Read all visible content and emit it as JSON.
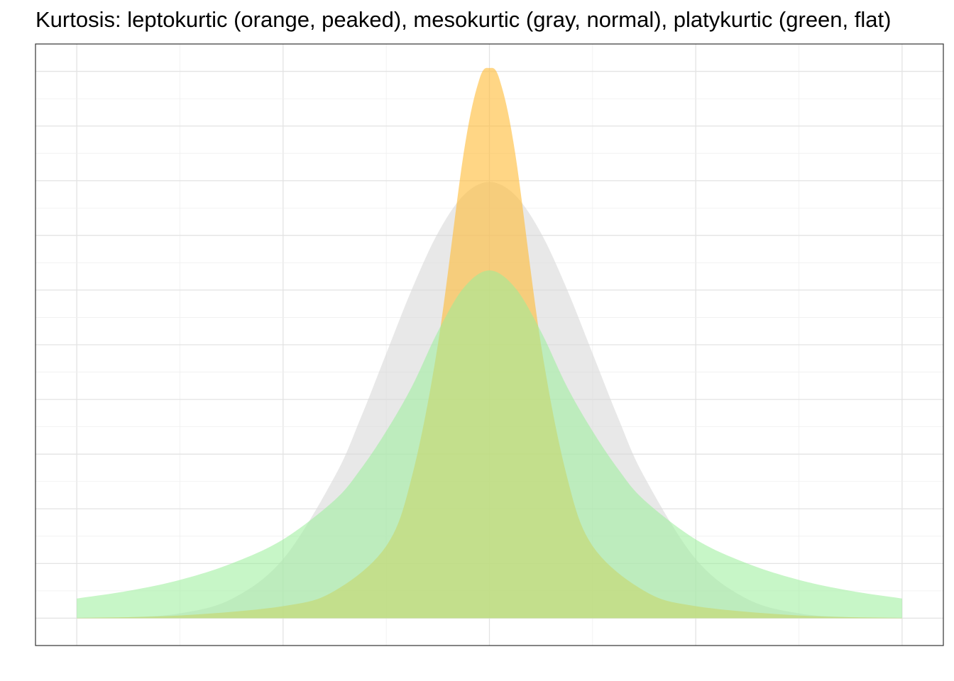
{
  "chart_data": {
    "type": "area",
    "title": "Kurtosis: leptokurtic (orange, peaked), mesokurtic (gray, normal), platykurtic (green, flat)",
    "xlabel": "",
    "ylabel": "",
    "xlim": [
      -4.4,
      4.4
    ],
    "ylim": [
      -0.025,
      0.525
    ],
    "grid": true,
    "legend": "none",
    "series": [
      {
        "key": "mesokurtic",
        "color": "#d9d9d9",
        "opacity": 0.6,
        "x": [
          -4,
          -3.5,
          -3,
          -2.5,
          -2,
          -1.5,
          -1.25,
          -1,
          -0.75,
          -0.5,
          -0.25,
          0,
          0.25,
          0.5,
          0.75,
          1,
          1.25,
          1.5,
          2,
          2.5,
          3,
          3.5,
          4
        ],
        "y": [
          0.0001,
          0.0009,
          0.0044,
          0.0175,
          0.054,
          0.1295,
          0.1826,
          0.242,
          0.3011,
          0.3521,
          0.3867,
          0.3989,
          0.3867,
          0.3521,
          0.3011,
          0.242,
          0.1826,
          0.1295,
          0.054,
          0.0175,
          0.0044,
          0.0009,
          0.0001
        ]
      },
      {
        "key": "leptokurtic",
        "color": "#ffbb33",
        "opacity": 0.6,
        "x": [
          -4,
          -3,
          -2,
          -1.5,
          -1,
          -0.75,
          -0.5,
          -0.25,
          -0.1,
          0,
          0.1,
          0.25,
          0.5,
          0.75,
          1,
          1.5,
          2,
          3,
          4
        ],
        "y": [
          0.0003,
          0.0025,
          0.011,
          0.025,
          0.066,
          0.13,
          0.25,
          0.425,
          0.492,
          0.503,
          0.492,
          0.425,
          0.25,
          0.13,
          0.066,
          0.025,
          0.011,
          0.0025,
          0.0003
        ]
      },
      {
        "key": "platykurtic",
        "color": "#99ee99",
        "opacity": 0.55,
        "x": [
          -4,
          -3.5,
          -3,
          -2.5,
          -2,
          -1.5,
          -1.25,
          -1,
          -0.75,
          -0.5,
          -0.25,
          0,
          0.25,
          0.5,
          0.75,
          1,
          1.25,
          1.5,
          2,
          2.5,
          3,
          3.5,
          4
        ],
        "y": [
          0.018,
          0.025,
          0.035,
          0.05,
          0.072,
          0.108,
          0.136,
          0.171,
          0.212,
          0.262,
          0.302,
          0.318,
          0.302,
          0.262,
          0.212,
          0.171,
          0.136,
          0.108,
          0.072,
          0.05,
          0.035,
          0.025,
          0.018
        ]
      }
    ]
  }
}
